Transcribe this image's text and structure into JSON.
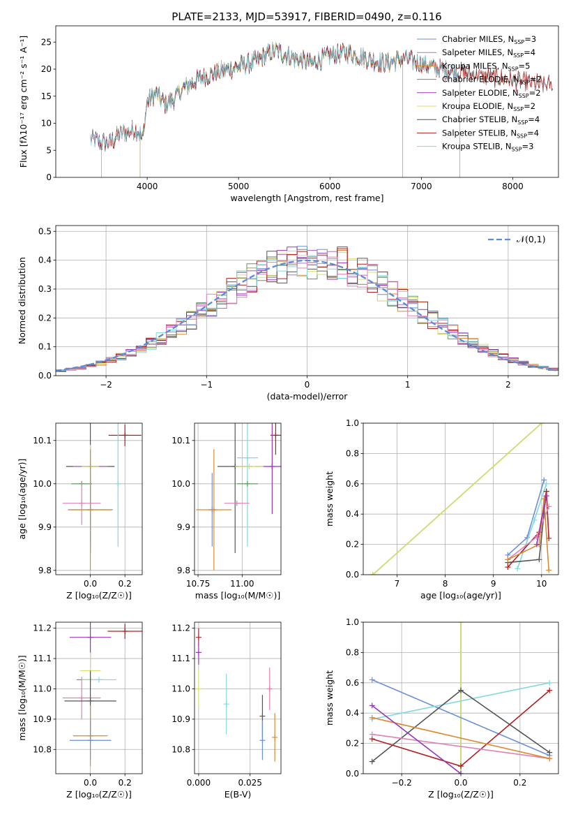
{
  "figure": {
    "title": "PLATE=2133, MJD=53917, FIBERID=0490, z=0.116"
  },
  "chart_data": [
    {
      "id": "spectrum",
      "type": "line",
      "title": "PLATE=2133, MJD=53917, FIBERID=0490, z=0.116",
      "xlabel": "wavelength [Angstrom, rest frame]",
      "ylabel": "Flux [fλ10⁻¹⁷ erg cm⁻² s⁻¹ A⁻¹]",
      "xlim": [
        3000,
        8500
      ],
      "ylim": [
        0,
        28
      ],
      "xticks": [
        4000,
        5000,
        6000,
        7000,
        8000
      ],
      "yticks": [
        0,
        5,
        10,
        15,
        20,
        25
      ],
      "grid": false,
      "legend_position": "right",
      "continuum": {
        "x": [
          3380,
          3500,
          3600,
          3700,
          3800,
          3900,
          3950,
          4000,
          4100,
          4200,
          4300,
          4400,
          4600,
          4800,
          5000,
          5200,
          5400,
          5600,
          5800,
          6000,
          6200,
          6400,
          6600,
          6800,
          7000,
          7200,
          7400,
          7600,
          7800,
          8000,
          8200,
          8440
        ],
        "y": [
          7.0,
          6.5,
          6.5,
          8.0,
          8.5,
          8.8,
          7.0,
          14.0,
          15.5,
          13.5,
          14.5,
          16.5,
          18.5,
          19.5,
          20.5,
          21.5,
          23.5,
          22.0,
          21.0,
          22.5,
          23.0,
          22.0,
          21.0,
          22.0,
          21.0,
          20.0,
          19.5,
          19.0,
          18.5,
          18.0,
          17.5,
          17.0
        ]
      },
      "series": [
        {
          "name": "Chabrier MILES, N_SSP=3",
          "color": "#6a8fd8",
          "range": [
            3380,
            7420
          ]
        },
        {
          "name": "Salpeter MILES, N_SSP=4",
          "color": "#b070c8",
          "range": [
            3380,
            7420
          ]
        },
        {
          "name": "Kroupa MILES, N_SSP=5",
          "color": "#d98a2e",
          "range": [
            3500,
            7420
          ]
        },
        {
          "name": "Chabrier ELODIE, N_SSP=2",
          "color": "#5a9a5a",
          "range": [
            3920,
            6800
          ]
        },
        {
          "name": "Salpeter ELODIE, N_SSP=2",
          "color": "#9b34b8",
          "range": [
            3920,
            6800
          ]
        },
        {
          "name": "Kroupa ELODIE, N_SSP=2",
          "color": "#d8e070",
          "range": [
            3920,
            6800
          ]
        },
        {
          "name": "Chabrier STELIB, N_SSP=4",
          "color": "#555555",
          "range": [
            3380,
            8440
          ]
        },
        {
          "name": "Salpeter STELIB, N_SSP=4",
          "color": "#b22020",
          "range": [
            3380,
            8440
          ]
        },
        {
          "name": "Kroupa STELIB, N_SSP=3",
          "color": "#80d8e0",
          "range": [
            3380,
            7420
          ]
        }
      ]
    },
    {
      "id": "residuals",
      "type": "line",
      "xlabel": "(data-model)/error",
      "ylabel": "Normed distribution",
      "xlim": [
        -2.5,
        2.5
      ],
      "ylim": [
        0,
        0.52
      ],
      "xticks": [
        -2,
        -1,
        0,
        1,
        2
      ],
      "yticks": [
        0.0,
        0.1,
        0.2,
        0.3,
        0.4,
        0.5
      ],
      "grid": true,
      "legend": [
        "𝒩(0,1)"
      ],
      "legend_position": "top-right",
      "bin_width": 0.1,
      "histogram_colors": [
        "#6a8fd8",
        "#b070c8",
        "#d98a2e",
        "#5a9a5a",
        "#9b34b8",
        "#d8e070",
        "#555555",
        "#b22020",
        "#80d8e0",
        "#e080b8"
      ],
      "normal_curve_color": "#5b8bd9"
    },
    {
      "id": "age-vs-z",
      "type": "scatter",
      "xlabel": "Z [log₁₀(Z/Z☉)]",
      "ylabel": "age  [log₁₀(age/yr)]",
      "xlim": [
        -0.2,
        0.3
      ],
      "ylim": [
        9.79,
        10.14
      ],
      "xticks": [
        0.0,
        0.2
      ],
      "yticks": [
        9.8,
        9.9,
        10.0,
        10.1
      ],
      "grid": true,
      "points": [
        {
          "color": "#b22020",
          "x": 0.2,
          "y": 10.112,
          "xerr": 0.095,
          "yerr": 0.025
        },
        {
          "color": "#555555",
          "x": 0.0,
          "y": 10.04,
          "xerr": 0.14,
          "yerr": 0.2
        },
        {
          "color": "#b070c8",
          "x": 0.0,
          "y": 10.04,
          "xerr": 0.1,
          "yerr": 0.0
        },
        {
          "color": "#d8e070",
          "x": 0.0,
          "y": 10.04,
          "xerr": 0.05,
          "yerr": 0.05
        },
        {
          "color": "#80d8e0",
          "x": 0.16,
          "y": 10.0,
          "xerr": 0.0,
          "yerr": 0.145
        },
        {
          "color": "#5a9a5a",
          "x": -0.05,
          "y": 10.0,
          "xerr": 0.06,
          "yerr": 0.0
        },
        {
          "color": "#e080b8",
          "x": -0.05,
          "y": 9.955,
          "xerr": 0.11,
          "yerr": 0.05
        },
        {
          "color": "#6a8fd8",
          "x": 0.0,
          "y": 9.94,
          "xerr": 0.13,
          "yerr": 0.085
        },
        {
          "color": "#d98a2e",
          "x": 0.0,
          "y": 9.94,
          "xerr": 0.12,
          "yerr": 0.14
        }
      ]
    },
    {
      "id": "age-vs-mass",
      "type": "scatter",
      "xlabel": "mass [log₁₀(M/M☉)]",
      "ylabel": "",
      "xlim": [
        10.73,
        11.22
      ],
      "ylim": [
        9.79,
        10.14
      ],
      "xticks": [
        10.75,
        11.0
      ],
      "yticks": [
        9.8,
        9.9,
        10.0,
        10.1
      ],
      "grid": true,
      "points": [
        {
          "color": "#b22020",
          "x": 11.19,
          "y": 10.112,
          "xerr": 0.03,
          "yerr": 0.045
        },
        {
          "color": "#555555",
          "x": 10.96,
          "y": 10.04,
          "xerr": 0.1,
          "yerr": 0.2
        },
        {
          "color": "#9b34b8",
          "x": 11.17,
          "y": 10.04,
          "xerr": 0.1,
          "yerr": 0.11
        },
        {
          "color": "#d8e070",
          "x": 11.04,
          "y": 10.04,
          "xerr": 0.08,
          "yerr": 0.0
        },
        {
          "color": "#80d8e0",
          "x": 11.03,
          "y": 10.06,
          "xerr": 0.06,
          "yerr": 0.205
        },
        {
          "color": "#5a9a5a",
          "x": 11.03,
          "y": 10.0,
          "xerr": 0.06,
          "yerr": 0.0
        },
        {
          "color": "#e080b8",
          "x": 10.97,
          "y": 9.955,
          "xerr": 0.07,
          "yerr": 0.0
        },
        {
          "color": "#6a8fd8",
          "x": 10.83,
          "y": 9.94,
          "xerr": 0.02,
          "yerr": 0.085
        },
        {
          "color": "#d98a2e",
          "x": 10.84,
          "y": 9.94,
          "xerr": 0.1,
          "yerr": 0.14
        }
      ]
    },
    {
      "id": "weight-vs-age",
      "type": "line",
      "xlabel": "age  [log₁₀(age/yr)]",
      "ylabel": "mass weight",
      "xlim": [
        6.3,
        10.35
      ],
      "ylim": [
        0.0,
        1.0
      ],
      "xticks": [
        7,
        8,
        9,
        10
      ],
      "yticks": [
        0.0,
        0.2,
        0.4,
        0.6,
        0.8,
        1.0
      ],
      "grid": true,
      "series": [
        {
          "color": "#5a9a5a",
          "x": [
            6.5,
            10.0
          ],
          "y": [
            0.0,
            1.0
          ]
        },
        {
          "color": "#d8e070",
          "x": [
            6.5,
            10.0
          ],
          "y": [
            0.0,
            1.0
          ]
        },
        {
          "color": "#6a8fd8",
          "x": [
            9.3,
            9.7,
            10.05
          ],
          "y": [
            0.13,
            0.245,
            0.625
          ]
        },
        {
          "color": "#80d8e0",
          "x": [
            9.5,
            9.85,
            10.1
          ],
          "y": [
            0.04,
            0.36,
            0.6
          ]
        },
        {
          "color": "#555555",
          "x": [
            9.3,
            9.95,
            10.1
          ],
          "y": [
            0.08,
            0.1,
            0.55
          ]
        },
        {
          "color": "#b22020",
          "x": [
            9.3,
            9.95,
            10.1,
            10.15
          ],
          "y": [
            0.05,
            0.28,
            0.55,
            0.24
          ]
        },
        {
          "color": "#e080b8",
          "x": [
            9.3,
            9.9,
            10.15
          ],
          "y": [
            0.1,
            0.25,
            0.45
          ]
        },
        {
          "color": "#d98a2e",
          "x": [
            9.3,
            9.95,
            10.05,
            10.15
          ],
          "y": [
            0.1,
            0.2,
            0.5,
            0.03
          ]
        },
        {
          "color": "#9b34b8",
          "x": [
            9.9,
            10.1
          ],
          "y": [
            0.2,
            0.52
          ]
        }
      ]
    },
    {
      "id": "mass-vs-z",
      "type": "scatter",
      "xlabel": "Z [log₁₀(Z/Z☉)]",
      "ylabel": "mass [log₁₀(M/M☉)]",
      "xlim": [
        -0.2,
        0.3
      ],
      "ylim": [
        10.72,
        11.22
      ],
      "xticks": [
        0.0,
        0.2
      ],
      "yticks": [
        10.8,
        10.9,
        11.0,
        11.1,
        11.2
      ],
      "grid": true,
      "points": [
        {
          "color": "#b22020",
          "x": 0.2,
          "y": 11.19,
          "xerr": 0.1,
          "yerr": 0.025
        },
        {
          "color": "#9b34b8",
          "x": 0.0,
          "y": 11.17,
          "xerr": 0.12,
          "yerr": 0.1
        },
        {
          "color": "#d8e070",
          "x": 0.0,
          "y": 11.06,
          "xerr": 0.06,
          "yerr": 0.06
        },
        {
          "color": "#5a9a5a",
          "x": 0.0,
          "y": 11.03,
          "xerr": 0.08,
          "yerr": 0.0
        },
        {
          "color": "#80d8e0",
          "x": 0.05,
          "y": 11.03,
          "xerr": 0.1,
          "yerr": 0.0
        },
        {
          "color": "#e080b8",
          "x": -0.05,
          "y": 10.97,
          "xerr": 0.11,
          "yerr": 0.07
        },
        {
          "color": "#555555",
          "x": 0.0,
          "y": 10.96,
          "xerr": 0.15,
          "yerr": 0.1
        },
        {
          "color": "#d98a2e",
          "x": 0.0,
          "y": 10.845,
          "xerr": 0.1,
          "yerr": 0.1
        },
        {
          "color": "#6a8fd8",
          "x": 0.0,
          "y": 10.83,
          "xerr": 0.12,
          "yerr": 0.065
        }
      ]
    },
    {
      "id": "mass-vs-ebv",
      "type": "scatter",
      "xlabel": "E(B-V)",
      "ylabel": "",
      "xlim": [
        -0.002,
        0.04
      ],
      "ylim": [
        10.72,
        11.22
      ],
      "xticks": [
        0.0,
        0.025
      ],
      "yticks": [
        10.8,
        10.9,
        11.0,
        11.1,
        11.2
      ],
      "grid": true,
      "points": [
        {
          "color": "#b22020",
          "x": 0.0,
          "y": 11.17,
          "xerr": 0.0,
          "yerr": 0.03
        },
        {
          "color": "#9b34b8",
          "x": 0.0,
          "y": 11.12,
          "xerr": 0.0,
          "yerr": 0.04
        },
        {
          "color": "#d8e070",
          "x": 0.0,
          "y": 11.0,
          "xerr": 0.0,
          "yerr": 0.06
        },
        {
          "color": "#80d8e0",
          "x": 0.0135,
          "y": 10.95,
          "xerr": 0.0,
          "yerr": 0.1
        },
        {
          "color": "#e080b8",
          "x": 0.0345,
          "y": 11.0,
          "xerr": 0.0,
          "yerr": 0.07
        },
        {
          "color": "#555555",
          "x": 0.031,
          "y": 10.91,
          "xerr": 0.0,
          "yerr": 0.07
        },
        {
          "color": "#6a8fd8",
          "x": 0.031,
          "y": 10.83,
          "xerr": 0.0,
          "yerr": 0.065
        },
        {
          "color": "#d98a2e",
          "x": 0.037,
          "y": 10.84,
          "xerr": 0.0,
          "yerr": 0.08
        }
      ]
    },
    {
      "id": "weight-vs-z",
      "type": "line",
      "xlabel": "Z [log₁₀(Z/Z☉)]",
      "ylabel": "mass weight",
      "xlim": [
        -0.33,
        0.33
      ],
      "ylim": [
        0.0,
        1.0
      ],
      "xticks": [
        -0.2,
        0.0,
        0.2
      ],
      "yticks": [
        0.0,
        0.2,
        0.4,
        0.6,
        0.8,
        1.0
      ],
      "grid": true,
      "series": [
        {
          "color": "#5a9a5a",
          "x": [
            0.0,
            0.0
          ],
          "y": [
            0.0,
            1.0
          ]
        },
        {
          "color": "#d8e070",
          "x": [
            0.0,
            0.0
          ],
          "y": [
            0.0,
            1.0
          ]
        },
        {
          "color": "#6a8fd8",
          "x": [
            -0.3,
            0.3
          ],
          "y": [
            0.62,
            0.12
          ]
        },
        {
          "color": "#80d8e0",
          "x": [
            -0.3,
            0.3
          ],
          "y": [
            0.36,
            0.6
          ]
        },
        {
          "color": "#555555",
          "x": [
            -0.3,
            0.0,
            0.3
          ],
          "y": [
            0.08,
            0.55,
            0.14
          ]
        },
        {
          "color": "#b22020",
          "x": [
            -0.3,
            0.0,
            0.3
          ],
          "y": [
            0.23,
            0.05,
            0.55
          ]
        },
        {
          "color": "#e080b8",
          "x": [
            -0.3,
            0.3
          ],
          "y": [
            0.26,
            0.1
          ]
        },
        {
          "color": "#d98a2e",
          "x": [
            -0.3,
            0.3
          ],
          "y": [
            0.37,
            0.1
          ]
        },
        {
          "color": "#9b34b8",
          "x": [
            -0.3,
            0.0
          ],
          "y": [
            0.45,
            0.0
          ]
        }
      ]
    }
  ]
}
